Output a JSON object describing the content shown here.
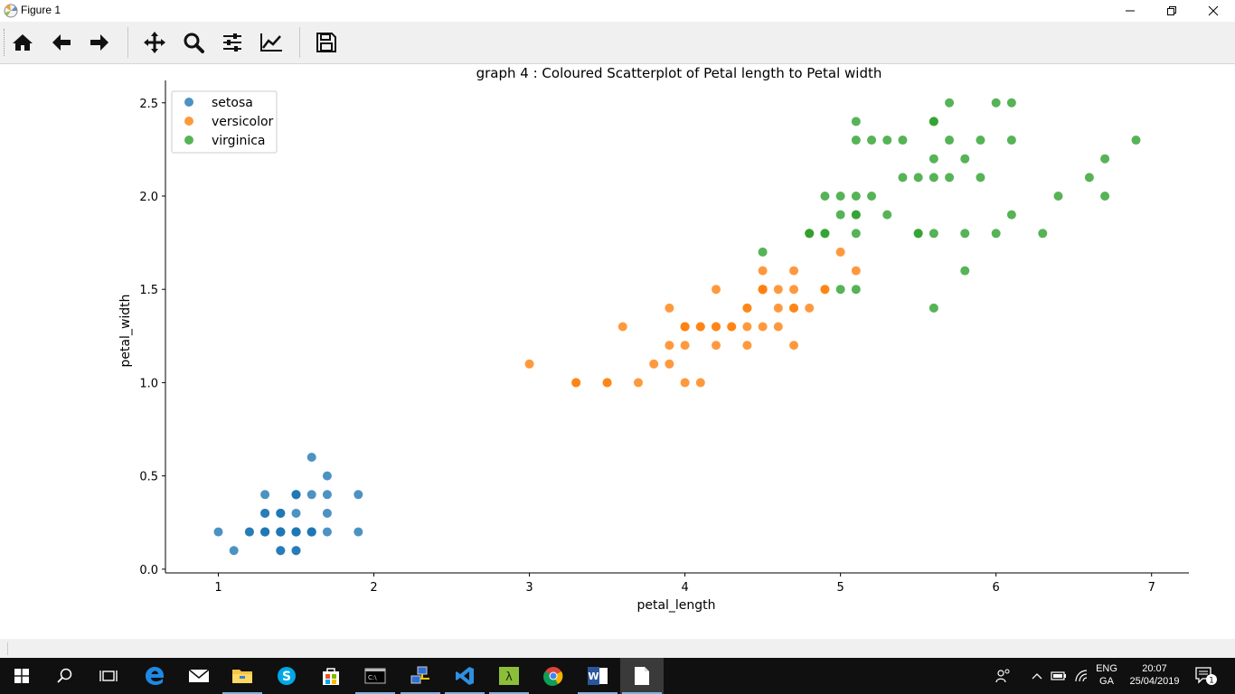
{
  "window": {
    "title": "Figure 1",
    "controls": {
      "minimize": "minimize",
      "restore": "restore",
      "close": "close"
    }
  },
  "toolbar": {
    "buttons": [
      {
        "name": "home",
        "icon": "home-icon"
      },
      {
        "name": "back",
        "icon": "arrow-left-icon"
      },
      {
        "name": "forward",
        "icon": "arrow-right-icon"
      },
      {
        "name": "pan",
        "icon": "move-icon"
      },
      {
        "name": "zoom",
        "icon": "magnifier-icon"
      },
      {
        "name": "subplots",
        "icon": "sliders-icon"
      },
      {
        "name": "edit-axes",
        "icon": "line-chart-icon"
      },
      {
        "name": "save",
        "icon": "floppy-icon"
      }
    ]
  },
  "chart_data": {
    "type": "scatter",
    "title": "graph 4 : Coloured Scatterplot of Petal length to Petal width",
    "xlabel": "petal_length",
    "ylabel": "petal_width",
    "xlim": [
      0.66,
      7.24
    ],
    "ylim": [
      -0.02,
      2.62
    ],
    "xticks": [
      "1",
      "2",
      "3",
      "4",
      "5",
      "6",
      "7"
    ],
    "xtick_values": [
      1,
      2,
      3,
      4,
      5,
      6,
      7
    ],
    "yticks": [
      "0.0",
      "0.5",
      "1.0",
      "1.5",
      "2.0",
      "2.5"
    ],
    "ytick_values": [
      0,
      0.5,
      1.0,
      1.5,
      2.0,
      2.5
    ],
    "grid": false,
    "legend_position": "top-left",
    "series": [
      {
        "name": "setosa",
        "color": "#1f77b4",
        "points": [
          [
            1.4,
            0.2
          ],
          [
            1.4,
            0.2
          ],
          [
            1.3,
            0.2
          ],
          [
            1.5,
            0.2
          ],
          [
            1.4,
            0.2
          ],
          [
            1.7,
            0.4
          ],
          [
            1.4,
            0.3
          ],
          [
            1.5,
            0.2
          ],
          [
            1.4,
            0.2
          ],
          [
            1.5,
            0.1
          ],
          [
            1.5,
            0.2
          ],
          [
            1.6,
            0.2
          ],
          [
            1.4,
            0.1
          ],
          [
            1.1,
            0.1
          ],
          [
            1.2,
            0.2
          ],
          [
            1.5,
            0.4
          ],
          [
            1.3,
            0.4
          ],
          [
            1.4,
            0.3
          ],
          [
            1.7,
            0.3
          ],
          [
            1.5,
            0.3
          ],
          [
            1.7,
            0.2
          ],
          [
            1.5,
            0.4
          ],
          [
            1.0,
            0.2
          ],
          [
            1.7,
            0.5
          ],
          [
            1.9,
            0.2
          ],
          [
            1.6,
            0.2
          ],
          [
            1.6,
            0.4
          ],
          [
            1.5,
            0.2
          ],
          [
            1.4,
            0.2
          ],
          [
            1.6,
            0.2
          ],
          [
            1.6,
            0.2
          ],
          [
            1.5,
            0.4
          ],
          [
            1.5,
            0.1
          ],
          [
            1.4,
            0.2
          ],
          [
            1.5,
            0.2
          ],
          [
            1.2,
            0.2
          ],
          [
            1.3,
            0.2
          ],
          [
            1.4,
            0.1
          ],
          [
            1.3,
            0.2
          ],
          [
            1.5,
            0.2
          ],
          [
            1.3,
            0.3
          ],
          [
            1.3,
            0.3
          ],
          [
            1.3,
            0.2
          ],
          [
            1.6,
            0.6
          ],
          [
            1.9,
            0.4
          ],
          [
            1.4,
            0.3
          ],
          [
            1.6,
            0.2
          ],
          [
            1.4,
            0.2
          ],
          [
            1.5,
            0.2
          ],
          [
            1.4,
            0.2
          ]
        ]
      },
      {
        "name": "versicolor",
        "color": "#ff7f0e",
        "points": [
          [
            4.7,
            1.4
          ],
          [
            4.5,
            1.5
          ],
          [
            4.9,
            1.5
          ],
          [
            4.0,
            1.3
          ],
          [
            4.6,
            1.5
          ],
          [
            4.5,
            1.3
          ],
          [
            4.7,
            1.6
          ],
          [
            3.3,
            1.0
          ],
          [
            4.6,
            1.3
          ],
          [
            3.9,
            1.4
          ],
          [
            3.5,
            1.0
          ],
          [
            4.2,
            1.5
          ],
          [
            4.0,
            1.0
          ],
          [
            4.7,
            1.4
          ],
          [
            3.6,
            1.3
          ],
          [
            4.4,
            1.4
          ],
          [
            4.5,
            1.5
          ],
          [
            4.1,
            1.0
          ],
          [
            4.5,
            1.5
          ],
          [
            3.9,
            1.1
          ],
          [
            4.8,
            1.8
          ],
          [
            4.0,
            1.3
          ],
          [
            4.9,
            1.5
          ],
          [
            4.7,
            1.2
          ],
          [
            4.3,
            1.3
          ],
          [
            4.4,
            1.4
          ],
          [
            4.8,
            1.4
          ],
          [
            5.0,
            1.7
          ],
          [
            4.5,
            1.5
          ],
          [
            3.5,
            1.0
          ],
          [
            3.8,
            1.1
          ],
          [
            3.7,
            1.0
          ],
          [
            3.9,
            1.2
          ],
          [
            5.1,
            1.6
          ],
          [
            4.5,
            1.5
          ],
          [
            4.5,
            1.6
          ],
          [
            4.7,
            1.5
          ],
          [
            4.4,
            1.3
          ],
          [
            4.1,
            1.3
          ],
          [
            4.0,
            1.3
          ],
          [
            4.4,
            1.2
          ],
          [
            4.6,
            1.4
          ],
          [
            4.0,
            1.2
          ],
          [
            3.3,
            1.0
          ],
          [
            4.2,
            1.3
          ],
          [
            4.2,
            1.2
          ],
          [
            4.2,
            1.3
          ],
          [
            4.3,
            1.3
          ],
          [
            3.0,
            1.1
          ],
          [
            4.1,
            1.3
          ]
        ]
      },
      {
        "name": "virginica",
        "color": "#2ca02c",
        "points": [
          [
            6.0,
            2.5
          ],
          [
            5.1,
            1.9
          ],
          [
            5.9,
            2.1
          ],
          [
            5.6,
            1.8
          ],
          [
            5.8,
            2.2
          ],
          [
            6.6,
            2.1
          ],
          [
            4.5,
            1.7
          ],
          [
            6.3,
            1.8
          ],
          [
            5.8,
            1.8
          ],
          [
            6.1,
            2.5
          ],
          [
            5.1,
            2.0
          ],
          [
            5.3,
            1.9
          ],
          [
            5.5,
            2.1
          ],
          [
            5.0,
            2.0
          ],
          [
            5.1,
            2.4
          ],
          [
            5.3,
            2.3
          ],
          [
            5.5,
            1.8
          ],
          [
            6.7,
            2.2
          ],
          [
            6.9,
            2.3
          ],
          [
            5.0,
            1.5
          ],
          [
            5.7,
            2.3
          ],
          [
            4.9,
            2.0
          ],
          [
            6.7,
            2.0
          ],
          [
            4.9,
            1.8
          ],
          [
            5.7,
            2.1
          ],
          [
            6.0,
            1.8
          ],
          [
            4.8,
            1.8
          ],
          [
            4.9,
            1.8
          ],
          [
            5.6,
            2.1
          ],
          [
            5.8,
            1.6
          ],
          [
            6.1,
            1.9
          ],
          [
            6.4,
            2.0
          ],
          [
            5.6,
            2.2
          ],
          [
            5.1,
            1.5
          ],
          [
            5.6,
            1.4
          ],
          [
            6.1,
            2.3
          ],
          [
            5.6,
            2.4
          ],
          [
            5.5,
            1.8
          ],
          [
            4.8,
            1.8
          ],
          [
            5.4,
            2.1
          ],
          [
            5.6,
            2.4
          ],
          [
            5.1,
            2.3
          ],
          [
            5.1,
            1.9
          ],
          [
            5.9,
            2.3
          ],
          [
            5.7,
            2.5
          ],
          [
            5.2,
            2.3
          ],
          [
            5.0,
            1.9
          ],
          [
            5.2,
            2.0
          ],
          [
            5.4,
            2.3
          ],
          [
            5.1,
            1.8
          ]
        ]
      }
    ]
  },
  "taskbar": {
    "apps": [
      {
        "name": "start",
        "icon": "windows-logo-icon"
      },
      {
        "name": "search",
        "icon": "search-icon"
      },
      {
        "name": "task-view",
        "icon": "task-view-icon"
      },
      {
        "name": "edge",
        "icon": "edge-icon"
      },
      {
        "name": "mail",
        "icon": "mail-icon"
      },
      {
        "name": "file-explorer",
        "icon": "folder-icon"
      },
      {
        "name": "skype",
        "icon": "skype-icon"
      },
      {
        "name": "store",
        "icon": "store-icon"
      },
      {
        "name": "terminal",
        "icon": "terminal-icon"
      },
      {
        "name": "network-app",
        "icon": "network-app-icon"
      },
      {
        "name": "vscode",
        "icon": "vscode-icon"
      },
      {
        "name": "python-app",
        "icon": "python-app-icon"
      },
      {
        "name": "chrome",
        "icon": "chrome-icon"
      },
      {
        "name": "word",
        "icon": "word-icon"
      },
      {
        "name": "figure-window",
        "icon": "document-icon"
      }
    ],
    "tray": {
      "language": "ENG",
      "layout": "GA",
      "time": "20:07",
      "date": "25/04/2019",
      "notifications": "1"
    }
  }
}
